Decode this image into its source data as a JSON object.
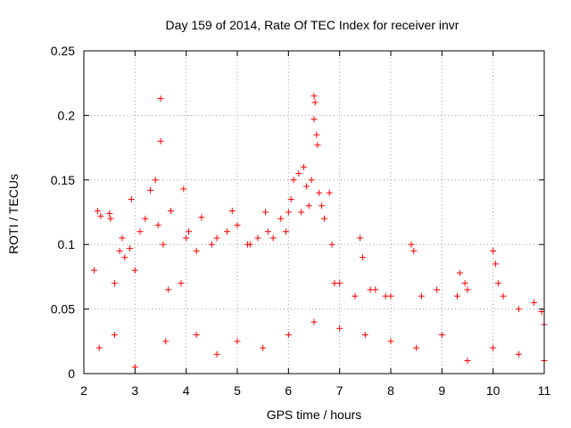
{
  "chart_data": {
    "type": "scatter",
    "title": "Day 159 of 2014, Rate Of TEC Index for receiver invr",
    "xlabel": "GPS time / hours",
    "ylabel": "ROTI / TECUs",
    "xlim": [
      2,
      11
    ],
    "ylim": [
      0,
      0.25
    ],
    "xticks": [
      2,
      3,
      4,
      5,
      6,
      7,
      8,
      9,
      10,
      11
    ],
    "xtick_labels": [
      "2",
      "3",
      "4",
      "5",
      "6",
      "7",
      "8",
      "9",
      "10",
      "11"
    ],
    "yticks": [
      0,
      0.05,
      0.1,
      0.15,
      0.2,
      0.25
    ],
    "ytick_labels": [
      "0",
      "0.05",
      "0.1",
      "0.15",
      "0.2",
      "0.25"
    ],
    "grid": true,
    "marker": "plus",
    "color": "#ff0000",
    "series": [
      {
        "name": "ROTI",
        "points": [
          [
            2.2,
            0.08
          ],
          [
            2.27,
            0.126
          ],
          [
            2.33,
            0.122
          ],
          [
            2.5,
            0.124
          ],
          [
            2.52,
            0.12
          ],
          [
            2.6,
            0.07
          ],
          [
            2.7,
            0.095
          ],
          [
            2.75,
            0.105
          ],
          [
            2.8,
            0.09
          ],
          [
            2.9,
            0.097
          ],
          [
            2.93,
            0.135
          ],
          [
            3.0,
            0.08
          ],
          [
            3.1,
            0.11
          ],
          [
            3.2,
            0.12
          ],
          [
            3.3,
            0.142
          ],
          [
            3.4,
            0.15
          ],
          [
            3.45,
            0.115
          ],
          [
            3.5,
            0.213
          ],
          [
            3.5,
            0.18
          ],
          [
            3.55,
            0.1
          ],
          [
            3.65,
            0.065
          ],
          [
            3.7,
            0.126
          ],
          [
            3.9,
            0.07
          ],
          [
            3.95,
            0.143
          ],
          [
            4.0,
            0.105
          ],
          [
            4.05,
            0.11
          ],
          [
            4.2,
            0.095
          ],
          [
            4.3,
            0.121
          ],
          [
            4.5,
            0.1
          ],
          [
            4.6,
            0.105
          ],
          [
            4.8,
            0.11
          ],
          [
            4.9,
            0.126
          ],
          [
            5.0,
            0.115
          ],
          [
            5.2,
            0.1
          ],
          [
            5.25,
            0.1
          ],
          [
            5.4,
            0.105
          ],
          [
            5.55,
            0.125
          ],
          [
            5.6,
            0.11
          ],
          [
            5.7,
            0.105
          ],
          [
            5.85,
            0.12
          ],
          [
            5.95,
            0.11
          ],
          [
            6.0,
            0.125
          ],
          [
            6.05,
            0.135
          ],
          [
            6.1,
            0.15
          ],
          [
            6.2,
            0.155
          ],
          [
            6.25,
            0.125
          ],
          [
            6.3,
            0.16
          ],
          [
            6.35,
            0.145
          ],
          [
            6.4,
            0.13
          ],
          [
            6.45,
            0.15
          ],
          [
            6.5,
            0.215
          ],
          [
            6.52,
            0.21
          ],
          [
            6.5,
            0.197
          ],
          [
            6.55,
            0.185
          ],
          [
            6.57,
            0.177
          ],
          [
            6.6,
            0.14
          ],
          [
            6.65,
            0.13
          ],
          [
            6.7,
            0.12
          ],
          [
            6.8,
            0.14
          ],
          [
            6.85,
            0.1
          ],
          [
            6.9,
            0.07
          ],
          [
            7.0,
            0.07
          ],
          [
            7.3,
            0.06
          ],
          [
            7.4,
            0.105
          ],
          [
            7.45,
            0.09
          ],
          [
            7.6,
            0.065
          ],
          [
            7.7,
            0.065
          ],
          [
            7.9,
            0.06
          ],
          [
            8.0,
            0.06
          ],
          [
            8.4,
            0.1
          ],
          [
            8.45,
            0.095
          ],
          [
            8.6,
            0.06
          ],
          [
            8.9,
            0.065
          ],
          [
            9.3,
            0.06
          ],
          [
            9.35,
            0.078
          ],
          [
            9.45,
            0.07
          ],
          [
            9.5,
            0.065
          ],
          [
            10.0,
            0.095
          ],
          [
            10.05,
            0.085
          ],
          [
            10.1,
            0.07
          ],
          [
            10.2,
            0.06
          ],
          [
            10.5,
            0.05
          ],
          [
            10.8,
            0.055
          ],
          [
            10.95,
            0.048
          ],
          [
            11.0,
            0.038
          ],
          [
            2.3,
            0.02
          ],
          [
            2.6,
            0.03
          ],
          [
            3.0,
            0.005
          ],
          [
            3.6,
            0.025
          ],
          [
            4.2,
            0.03
          ],
          [
            4.6,
            0.015
          ],
          [
            5.0,
            0.025
          ],
          [
            5.5,
            0.02
          ],
          [
            6.0,
            0.03
          ],
          [
            6.5,
            0.04
          ],
          [
            7.0,
            0.035
          ],
          [
            7.5,
            0.03
          ],
          [
            8.0,
            0.025
          ],
          [
            8.5,
            0.02
          ],
          [
            9.0,
            0.03
          ],
          [
            9.5,
            0.01
          ],
          [
            10.0,
            0.02
          ],
          [
            10.5,
            0.015
          ],
          [
            11.0,
            0.01
          ]
        ]
      }
    ]
  }
}
